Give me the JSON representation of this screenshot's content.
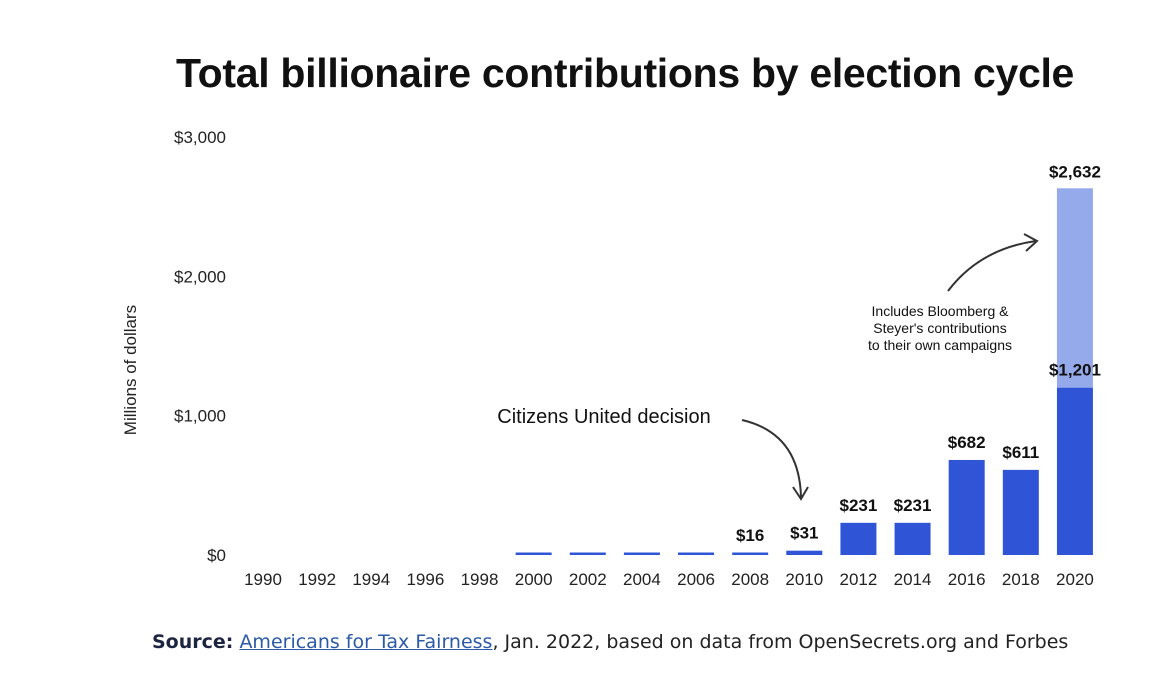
{
  "chart_data": {
    "type": "bar",
    "title": "Total billionaire contributions by election cycle",
    "ylabel": "Millions of dollars",
    "xlabel": "",
    "ylim": [
      0,
      3000
    ],
    "yticks": [
      0,
      1000,
      2000,
      3000
    ],
    "ytick_labels": [
      "$0",
      "$1,000",
      "$2,000",
      "$3,000"
    ],
    "grid": false,
    "categories": [
      "1990",
      "1992",
      "1994",
      "1996",
      "1998",
      "2000",
      "2002",
      "2004",
      "2006",
      "2008",
      "2010",
      "2012",
      "2014",
      "2016",
      "2018",
      "2020"
    ],
    "values": [
      0,
      0,
      0,
      0,
      0,
      10,
      10,
      10,
      10,
      16,
      31,
      231,
      231,
      682,
      611,
      1201
    ],
    "data_labels": [
      "",
      "",
      "",
      "",
      "",
      "",
      "",
      "",
      "",
      "$16",
      "$31",
      "$231",
      "$231",
      "$682",
      "$611",
      "$1,201"
    ],
    "stacked_extra": {
      "category": "2020",
      "total": 2632,
      "label": "$2,632"
    },
    "colors": {
      "bar": "#2f55d6",
      "extra": "#95aaea"
    },
    "annotations": [
      {
        "text": "Citizens United decision",
        "points_to": "2010"
      },
      {
        "text_lines": [
          "Includes Bloomberg &",
          "Steyer's contributions",
          "to their own campaigns"
        ],
        "points_to": "2020"
      }
    ]
  },
  "source": {
    "label": "Source:",
    "link_text": "Americans for Tax Fairness",
    "rest": ", Jan. 2022, based on data from OpenSecrets.org and Forbes"
  }
}
